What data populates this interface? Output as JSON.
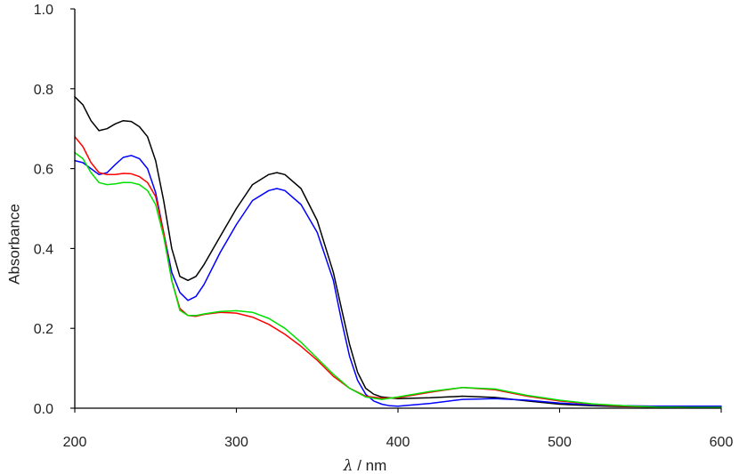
{
  "chart_data": {
    "type": "line",
    "title": "",
    "xlabel_symbol": "λ",
    "xlabel_rest": " / nm",
    "ylabel": "Absorbance",
    "xlim": [
      200,
      600
    ],
    "ylim": [
      0.0,
      1.0
    ],
    "xticks": [
      200,
      300,
      400,
      500,
      600
    ],
    "xtick_labels": [
      "200",
      "300",
      "400",
      "500",
      "600"
    ],
    "yticks": [
      0.0,
      0.2,
      0.4,
      0.6,
      0.8,
      1.0
    ],
    "ytick_labels": [
      "0.0",
      "0.2",
      "0.4",
      "0.6",
      "0.8",
      "1.0"
    ],
    "grid": false,
    "legend": "none",
    "series": [
      {
        "color": "#000000",
        "x": [
          200,
          205,
          210,
          215,
          220,
          225,
          230,
          235,
          240,
          245,
          250,
          255,
          260,
          265,
          270,
          275,
          280,
          290,
          300,
          310,
          320,
          325,
          330,
          340,
          350,
          360,
          365,
          370,
          375,
          380,
          385,
          390,
          400,
          420,
          440,
          460,
          480,
          500,
          520,
          540,
          560,
          580,
          600
        ],
        "y": [
          0.78,
          0.76,
          0.72,
          0.695,
          0.7,
          0.712,
          0.72,
          0.718,
          0.705,
          0.68,
          0.62,
          0.52,
          0.4,
          0.33,
          0.32,
          0.33,
          0.36,
          0.43,
          0.5,
          0.56,
          0.585,
          0.59,
          0.585,
          0.55,
          0.47,
          0.34,
          0.25,
          0.16,
          0.09,
          0.05,
          0.035,
          0.028,
          0.024,
          0.026,
          0.03,
          0.027,
          0.018,
          0.01,
          0.006,
          0.004,
          0.003,
          0.003,
          0.003
        ]
      },
      {
        "color": "#0000ff",
        "x": [
          200,
          205,
          210,
          215,
          220,
          225,
          230,
          235,
          240,
          245,
          250,
          255,
          260,
          265,
          270,
          275,
          280,
          290,
          300,
          310,
          320,
          325,
          330,
          340,
          350,
          360,
          365,
          370,
          375,
          380,
          385,
          390,
          395,
          400,
          420,
          440,
          460,
          480,
          500,
          520,
          540,
          560,
          580,
          600
        ],
        "y": [
          0.62,
          0.615,
          0.6,
          0.585,
          0.59,
          0.61,
          0.628,
          0.633,
          0.625,
          0.6,
          0.54,
          0.44,
          0.34,
          0.29,
          0.27,
          0.28,
          0.31,
          0.39,
          0.46,
          0.52,
          0.545,
          0.55,
          0.545,
          0.51,
          0.44,
          0.32,
          0.22,
          0.13,
          0.07,
          0.035,
          0.018,
          0.01,
          0.006,
          0.005,
          0.012,
          0.022,
          0.024,
          0.02,
          0.013,
          0.008,
          0.006,
          0.005,
          0.005,
          0.005
        ]
      },
      {
        "color": "#ff0000",
        "x": [
          200,
          205,
          210,
          215,
          220,
          225,
          230,
          235,
          240,
          245,
          250,
          255,
          260,
          265,
          270,
          275,
          280,
          290,
          300,
          310,
          320,
          330,
          340,
          350,
          360,
          370,
          380,
          390,
          400,
          420,
          440,
          460,
          480,
          500,
          520,
          540,
          560,
          580,
          600
        ],
        "y": [
          0.68,
          0.655,
          0.615,
          0.59,
          0.585,
          0.585,
          0.588,
          0.587,
          0.58,
          0.565,
          0.53,
          0.44,
          0.32,
          0.25,
          0.232,
          0.23,
          0.235,
          0.24,
          0.238,
          0.228,
          0.21,
          0.185,
          0.155,
          0.12,
          0.08,
          0.05,
          0.03,
          0.025,
          0.026,
          0.04,
          0.052,
          0.046,
          0.03,
          0.018,
          0.01,
          0.005,
          0.003,
          0.002,
          0.002
        ]
      },
      {
        "color": "#00e000",
        "x": [
          200,
          205,
          210,
          215,
          220,
          225,
          230,
          235,
          240,
          245,
          250,
          255,
          260,
          265,
          270,
          275,
          280,
          290,
          300,
          310,
          320,
          330,
          340,
          350,
          360,
          370,
          380,
          390,
          400,
          420,
          440,
          460,
          480,
          500,
          520,
          540,
          560,
          580,
          600
        ],
        "y": [
          0.64,
          0.625,
          0.59,
          0.565,
          0.56,
          0.562,
          0.565,
          0.565,
          0.56,
          0.545,
          0.51,
          0.43,
          0.32,
          0.245,
          0.232,
          0.232,
          0.236,
          0.242,
          0.244,
          0.24,
          0.225,
          0.2,
          0.165,
          0.125,
          0.085,
          0.05,
          0.028,
          0.022,
          0.028,
          0.042,
          0.052,
          0.048,
          0.032,
          0.02,
          0.011,
          0.006,
          0.003,
          0.002,
          0.002
        ]
      }
    ]
  }
}
